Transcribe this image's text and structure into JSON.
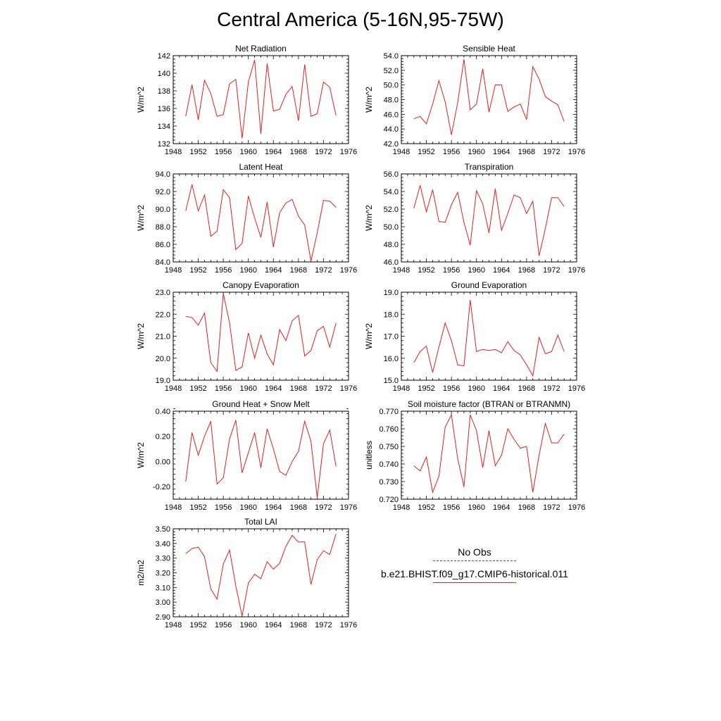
{
  "title": "Central America (5-16N,95-75W)",
  "legend": {
    "items": [
      {
        "name": "No Obs",
        "color": "#3c3c8c",
        "style": "dashed"
      },
      {
        "name": "b.e21.BHIST.f09_g17.CMIP6-historical.011",
        "color": "#e61e1e",
        "style": "solid"
      }
    ]
  },
  "chart_data": [
    {
      "type": "line",
      "title": "Net Radiation",
      "ylabel": "W/m^2",
      "xlim": [
        1948,
        1976
      ],
      "ylim": [
        132,
        142
      ],
      "xticks": [
        1948,
        1952,
        1956,
        1960,
        1964,
        1968,
        1972,
        1976
      ],
      "xticklabels": [
        "1948",
        "1952",
        "1956",
        "1960",
        "1964",
        "1968",
        "1972",
        "1976"
      ],
      "yticks": [
        132,
        134,
        136,
        138,
        140,
        142
      ],
      "yticklabels": [
        "132",
        "134",
        "136",
        "138",
        "140",
        "142"
      ],
      "x": [
        1950,
        1951,
        1952,
        1953,
        1954,
        1955,
        1956,
        1957,
        1958,
        1959,
        1960,
        1961,
        1962,
        1963,
        1964,
        1965,
        1966,
        1967,
        1968,
        1969,
        1970,
        1971,
        1972,
        1973,
        1974
      ],
      "series": [
        {
          "values": [
            135.1,
            138.7,
            134.7,
            139.2,
            137.7,
            135.1,
            135.3,
            138.8,
            139.3,
            132.6,
            139.0,
            141.5,
            133.1,
            141.1,
            135.7,
            135.9,
            137.6,
            138.5,
            134.6,
            141.0,
            135.1,
            135.4,
            139.0,
            138.4,
            135.2
          ],
          "color": "#e61e1e"
        }
      ]
    },
    {
      "type": "line",
      "title": "Sensible Heat",
      "ylabel": "W/m^2",
      "xlim": [
        1948,
        1976
      ],
      "ylim": [
        42,
        54
      ],
      "xticks": [
        1948,
        1952,
        1956,
        1960,
        1964,
        1968,
        1972,
        1976
      ],
      "xticklabels": [
        "1948",
        "1952",
        "1956",
        "1960",
        "1964",
        "1968",
        "1972",
        "1976"
      ],
      "yticks": [
        42,
        44,
        46,
        48,
        50,
        52,
        54
      ],
      "yticklabels": [
        "42.0",
        "44.0",
        "46.0",
        "48.0",
        "50.0",
        "52.0",
        "54.0"
      ],
      "x": [
        1950,
        1951,
        1952,
        1953,
        1954,
        1955,
        1956,
        1957,
        1958,
        1959,
        1960,
        1961,
        1962,
        1963,
        1964,
        1965,
        1966,
        1967,
        1968,
        1969,
        1970,
        1971,
        1972,
        1973,
        1974
      ],
      "series": [
        {
          "values": [
            45.4,
            45.7,
            44.7,
            47.4,
            50.6,
            47.7,
            43.2,
            47.6,
            53.5,
            46.6,
            47.4,
            52.2,
            46.3,
            50.0,
            50.0,
            46.4,
            47.0,
            47.4,
            45.3,
            52.5,
            50.8,
            48.4,
            47.8,
            47.3,
            45.0
          ],
          "color": "#e61e1e"
        }
      ]
    },
    {
      "type": "line",
      "title": "Latent Heat",
      "ylabel": "W/m^2",
      "xlim": [
        1948,
        1976
      ],
      "ylim": [
        84,
        94
      ],
      "xticks": [
        1948,
        1952,
        1956,
        1960,
        1964,
        1968,
        1972,
        1976
      ],
      "xticklabels": [
        "1948",
        "1952",
        "1956",
        "1960",
        "1964",
        "1968",
        "1972",
        "1976"
      ],
      "yticks": [
        84,
        86,
        88,
        90,
        92,
        94
      ],
      "yticklabels": [
        "84.0",
        "86.0",
        "88.0",
        "90.0",
        "92.0",
        "94.0"
      ],
      "x": [
        1950,
        1951,
        1952,
        1953,
        1954,
        1955,
        1956,
        1957,
        1958,
        1959,
        1960,
        1961,
        1962,
        1963,
        1964,
        1965,
        1966,
        1967,
        1968,
        1969,
        1970,
        1971,
        1972,
        1973,
        1974
      ],
      "series": [
        {
          "values": [
            89.8,
            92.8,
            89.8,
            91.6,
            86.9,
            87.5,
            92.2,
            91.3,
            85.4,
            86.1,
            91.5,
            89.0,
            86.8,
            90.8,
            85.7,
            89.6,
            90.7,
            91.1,
            89.2,
            88.2,
            84.1,
            87.3,
            91.0,
            90.9,
            90.2
          ],
          "color": "#e61e1e"
        }
      ]
    },
    {
      "type": "line",
      "title": "Transpiration",
      "ylabel": "W/m^2",
      "xlim": [
        1948,
        1976
      ],
      "ylim": [
        46,
        56
      ],
      "xticks": [
        1948,
        1952,
        1956,
        1960,
        1964,
        1968,
        1972,
        1976
      ],
      "xticklabels": [
        "1948",
        "1952",
        "1956",
        "1960",
        "1964",
        "1968",
        "1972",
        "1976"
      ],
      "yticks": [
        46,
        48,
        50,
        52,
        54,
        56
      ],
      "yticklabels": [
        "46.0",
        "48.0",
        "50.0",
        "52.0",
        "54.0",
        "56.0"
      ],
      "x": [
        1950,
        1951,
        1952,
        1953,
        1954,
        1955,
        1956,
        1957,
        1958,
        1959,
        1960,
        1961,
        1962,
        1963,
        1964,
        1965,
        1966,
        1967,
        1968,
        1969,
        1970,
        1971,
        1972,
        1973,
        1974
      ],
      "series": [
        {
          "values": [
            52.1,
            54.7,
            51.7,
            54.2,
            50.6,
            50.5,
            52.5,
            53.9,
            50.5,
            47.9,
            54.1,
            52.6,
            49.3,
            54.3,
            49.6,
            51.5,
            53.6,
            53.3,
            51.5,
            52.9,
            46.7,
            49.8,
            53.3,
            53.3,
            52.3
          ],
          "color": "#e61e1e"
        }
      ]
    },
    {
      "type": "line",
      "title": "Canopy Evaporation",
      "ylabel": "W/m^2",
      "xlim": [
        1948,
        1976
      ],
      "ylim": [
        19,
        23
      ],
      "xticks": [
        1948,
        1952,
        1956,
        1960,
        1964,
        1968,
        1972,
        1976
      ],
      "xticklabels": [
        "1948",
        "1952",
        "1956",
        "1960",
        "1964",
        "1968",
        "1972",
        "1976"
      ],
      "yticks": [
        19,
        20,
        21,
        22,
        23
      ],
      "yticklabels": [
        "19.0",
        "20.0",
        "21.0",
        "22.0",
        "23.0"
      ],
      "x": [
        1950,
        1951,
        1952,
        1953,
        1954,
        1955,
        1956,
        1957,
        1958,
        1959,
        1960,
        1961,
        1962,
        1963,
        1964,
        1965,
        1966,
        1967,
        1968,
        1969,
        1970,
        1971,
        1972,
        1973,
        1974
      ],
      "series": [
        {
          "values": [
            21.9,
            21.85,
            21.5,
            22.05,
            19.8,
            19.4,
            22.95,
            21.6,
            19.45,
            19.6,
            21.15,
            20.0,
            21.05,
            20.2,
            19.7,
            21.3,
            20.8,
            21.7,
            21.95,
            20.1,
            20.35,
            21.25,
            21.45,
            20.5,
            21.6
          ],
          "color": "#e61e1e"
        }
      ]
    },
    {
      "type": "line",
      "title": "Ground Evaporation",
      "ylabel": "W/m^2",
      "xlim": [
        1948,
        1976
      ],
      "ylim": [
        15,
        19
      ],
      "xticks": [
        1948,
        1952,
        1956,
        1960,
        1964,
        1968,
        1972,
        1976
      ],
      "xticklabels": [
        "1948",
        "1952",
        "1956",
        "1960",
        "1964",
        "1968",
        "1972",
        "1976"
      ],
      "yticks": [
        15,
        16,
        17,
        18,
        19
      ],
      "yticklabels": [
        "15.0",
        "16.0",
        "17.0",
        "18.0",
        "19.0"
      ],
      "x": [
        1950,
        1951,
        1952,
        1953,
        1954,
        1955,
        1956,
        1957,
        1958,
        1959,
        1960,
        1961,
        1962,
        1963,
        1964,
        1965,
        1966,
        1967,
        1968,
        1969,
        1970,
        1971,
        1972,
        1973,
        1974
      ],
      "series": [
        {
          "values": [
            15.8,
            16.3,
            16.55,
            15.35,
            16.5,
            17.6,
            16.8,
            15.7,
            15.65,
            18.65,
            16.3,
            16.4,
            16.35,
            16.4,
            16.25,
            16.75,
            16.35,
            16.15,
            15.7,
            15.2,
            16.95,
            16.2,
            16.3,
            17.05,
            16.3
          ],
          "color": "#e61e1e"
        }
      ]
    },
    {
      "type": "line",
      "title": "Ground Heat + Snow Melt",
      "ylabel": "W/m^2",
      "xlim": [
        1948,
        1976
      ],
      "ylim": [
        -0.3,
        0.4
      ],
      "xticks": [
        1948,
        1952,
        1956,
        1960,
        1964,
        1968,
        1972,
        1976
      ],
      "xticklabels": [
        "1948",
        "1952",
        "1956",
        "1960",
        "1964",
        "1968",
        "1972",
        "1976"
      ],
      "yticks": [
        -0.2,
        0.0,
        0.2,
        0.4
      ],
      "yticklabels": [
        "-0.20",
        "0.00",
        "0.20",
        "0.40"
      ],
      "x": [
        1950,
        1951,
        1952,
        1953,
        1954,
        1955,
        1956,
        1957,
        1958,
        1959,
        1960,
        1961,
        1962,
        1963,
        1964,
        1965,
        1966,
        1967,
        1968,
        1969,
        1970,
        1971,
        1972,
        1973,
        1974
      ],
      "series": [
        {
          "values": [
            -0.16,
            0.23,
            0.05,
            0.2,
            0.32,
            -0.18,
            -0.13,
            0.18,
            0.33,
            -0.09,
            0.07,
            0.23,
            -0.05,
            0.26,
            0.1,
            -0.08,
            -0.11,
            0.0,
            0.08,
            0.32,
            0.16,
            -0.29,
            0.14,
            0.25,
            -0.04
          ],
          "color": "#e61e1e"
        }
      ]
    },
    {
      "type": "line",
      "title": "Soil moisture factor (BTRAN or BTRANMN)",
      "ylabel": "unitless",
      "xlim": [
        1948,
        1976
      ],
      "ylim": [
        0.72,
        0.77
      ],
      "xticks": [
        1948,
        1952,
        1956,
        1960,
        1964,
        1968,
        1972,
        1976
      ],
      "xticklabels": [
        "1948",
        "1952",
        "1956",
        "1960",
        "1964",
        "1968",
        "1972",
        "1976"
      ],
      "yticks": [
        0.72,
        0.73,
        0.74,
        0.75,
        0.76,
        0.77
      ],
      "yticklabels": [
        "0.720",
        "0.730",
        "0.740",
        "0.750",
        "0.760",
        "0.770"
      ],
      "x": [
        1950,
        1951,
        1952,
        1953,
        1954,
        1955,
        1956,
        1957,
        1958,
        1959,
        1960,
        1961,
        1962,
        1963,
        1964,
        1965,
        1966,
        1967,
        1968,
        1969,
        1970,
        1971,
        1972,
        1973,
        1974
      ],
      "series": [
        {
          "values": [
            0.739,
            0.736,
            0.744,
            0.724,
            0.733,
            0.761,
            0.768,
            0.743,
            0.727,
            0.768,
            0.759,
            0.738,
            0.759,
            0.739,
            0.745,
            0.76,
            0.754,
            0.749,
            0.75,
            0.724,
            0.745,
            0.763,
            0.752,
            0.752,
            0.757
          ],
          "color": "#e61e1e"
        }
      ]
    },
    {
      "type": "line",
      "title": "Total LAI",
      "ylabel": "m2/m2",
      "xlim": [
        1948,
        1976
      ],
      "ylim": [
        2.9,
        3.5
      ],
      "xticks": [
        1948,
        1952,
        1956,
        1960,
        1964,
        1968,
        1972,
        1976
      ],
      "xticklabels": [
        "1948",
        "1952",
        "1956",
        "1960",
        "1964",
        "1968",
        "1972",
        "1976"
      ],
      "yticks": [
        2.9,
        3.0,
        3.1,
        3.2,
        3.3,
        3.4,
        3.5
      ],
      "yticklabels": [
        "2.90",
        "3.00",
        "3.10",
        "3.20",
        "3.30",
        "3.40",
        "3.50"
      ],
      "x": [
        1950,
        1951,
        1952,
        1953,
        1954,
        1955,
        1956,
        1957,
        1958,
        1959,
        1960,
        1961,
        1962,
        1963,
        1964,
        1965,
        1966,
        1967,
        1968,
        1969,
        1970,
        1971,
        1972,
        1973,
        1974
      ],
      "series": [
        {
          "values": [
            3.33,
            3.365,
            3.375,
            3.31,
            3.09,
            3.02,
            3.26,
            3.355,
            3.11,
            2.905,
            3.13,
            3.19,
            3.16,
            3.275,
            3.225,
            3.265,
            3.38,
            3.455,
            3.41,
            3.41,
            3.12,
            3.29,
            3.35,
            3.325,
            3.465
          ],
          "color": "#e61e1e"
        }
      ]
    }
  ]
}
